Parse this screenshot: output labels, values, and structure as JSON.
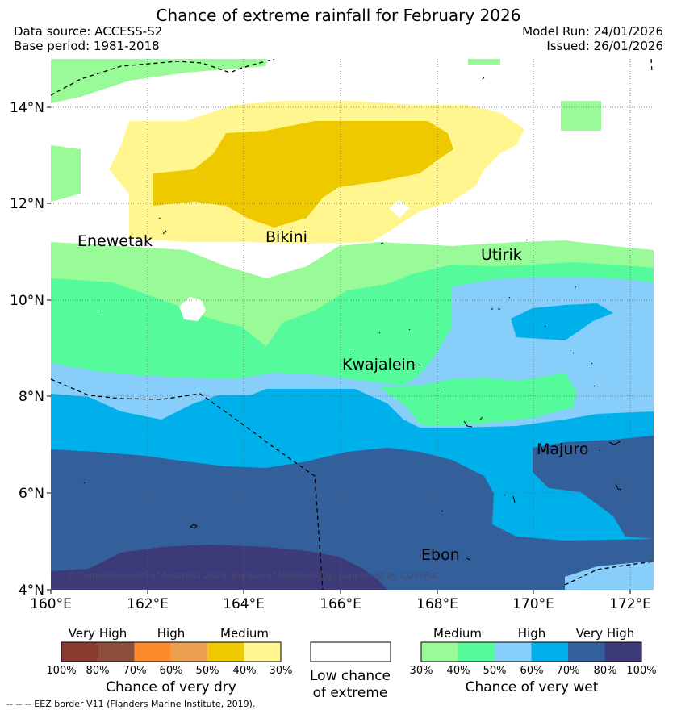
{
  "title": "Chance of extreme rainfall for February 2026",
  "header": {
    "data_source": "Data source: ACCESS-S2",
    "base_period": "Base period: 1981-2018",
    "model_run": "Model Run: 24/01/2026",
    "issued": "Issued: 26/01/2026"
  },
  "map": {
    "lat_labels": [
      "14°N",
      "12°N",
      "10°N",
      "8°N",
      "6°N",
      "4°N"
    ],
    "lon_labels": [
      "160°E",
      "162°E",
      "164°E",
      "166°E",
      "168°E",
      "170°E",
      "172°E"
    ],
    "places": {
      "enewetak": "Enewetak",
      "bikini": "Bikini",
      "utirik": "Utirik",
      "kwajalein": "Kwajalein",
      "majuro": "Majuro",
      "ebon": "Ebon"
    },
    "copyright": "© Commonwealth of Australia 2026, Bureau of Meteorology, supported by COSPPac"
  },
  "legend": {
    "dry": {
      "headings": [
        "Very High",
        "High",
        "Medium"
      ],
      "ticks": [
        "100%",
        "80%",
        "70%",
        "60%",
        "50%",
        "40%",
        "30%"
      ],
      "colors": [
        "#8b3a2f",
        "#8c4f3c",
        "#ff8a2b",
        "#eda050",
        "#eec900",
        "#fff68f"
      ],
      "title": "Chance of very dry"
    },
    "neutral": {
      "line1": "Low chance",
      "line2": "of extreme"
    },
    "wet": {
      "headings": [
        "Medium",
        "High",
        "Very High"
      ],
      "ticks": [
        "30%",
        "40%",
        "50%",
        "60%",
        "70%",
        "80%",
        "100%"
      ],
      "colors": [
        "#98fb98",
        "#55fa9a",
        "#87cefa",
        "#00b0eb",
        "#335f9b",
        "#3c3a78"
      ],
      "title": "Chance of very wet"
    }
  },
  "footnote": "-- -- -- EEZ border V11 (Flanders Marine Institute, 2019)."
}
